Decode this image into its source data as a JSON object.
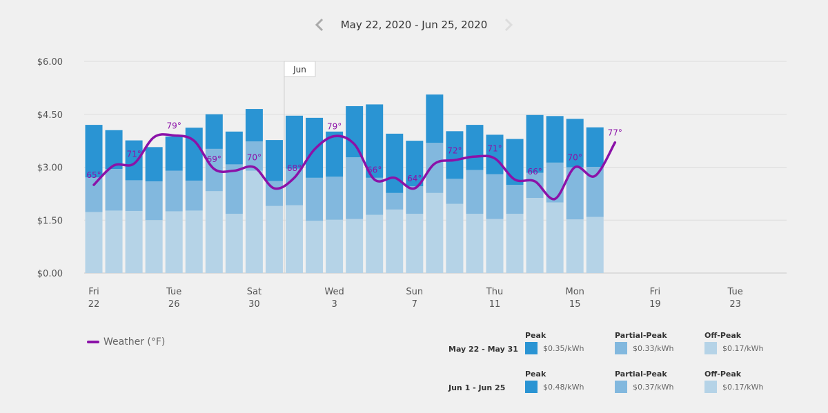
{
  "header": {
    "date_range": "May 22, 2020 - Jun 25, 2020",
    "prev_icon": "chevron-left-icon",
    "next_icon": "chevron-right-icon"
  },
  "chart_data": {
    "type": "bar",
    "stacked": true,
    "yaxis": {
      "ticks": [
        "$0.00",
        "$1.50",
        "$3.00",
        "$4.50",
        "$6.00"
      ],
      "ylim": [
        0,
        6
      ]
    },
    "x_ticks": [
      {
        "day": 0,
        "weekday": "Fri",
        "date": "22"
      },
      {
        "day": 4,
        "weekday": "Tue",
        "date": "26"
      },
      {
        "day": 8,
        "weekday": "Sat",
        "date": "30"
      },
      {
        "day": 12,
        "weekday": "Wed",
        "date": "3"
      },
      {
        "day": 16,
        "weekday": "Sun",
        "date": "7"
      },
      {
        "day": 20,
        "weekday": "Thu",
        "date": "11"
      },
      {
        "day": 24,
        "weekday": "Mon",
        "date": "15"
      },
      {
        "day": 28,
        "weekday": "Fri",
        "date": "19"
      },
      {
        "day": 32,
        "weekday": "Tue",
        "date": "23"
      }
    ],
    "month_marker": {
      "label": "Jun",
      "between_days": [
        9,
        10
      ]
    },
    "grid": true,
    "colors": {
      "peak": "#2a94d3",
      "partial_peak": "#82b8de",
      "off_peak": "#b5d3e7",
      "weather": "#8b12a8"
    },
    "series": [
      {
        "name": "Off-Peak",
        "values": [
          1.73,
          1.77,
          1.76,
          1.5,
          1.75,
          1.77,
          2.32,
          1.68,
          2.9,
          1.9,
          1.92,
          1.48,
          1.51,
          1.53,
          1.65,
          1.8,
          1.68,
          2.27,
          1.96,
          1.68,
          1.53,
          1.68,
          2.13,
          2.0,
          1.52,
          1.59
        ]
      },
      {
        "name": "Partial-Peak",
        "values": [
          0.98,
          1.18,
          0.87,
          1.1,
          1.15,
          0.85,
          1.2,
          1.4,
          0.83,
          0.71,
          1.04,
          1.22,
          1.22,
          1.75,
          1.05,
          0.47,
          0.78,
          1.42,
          0.71,
          1.24,
          1.27,
          0.82,
          0.71,
          1.13,
          1.48,
          1.42
        ]
      },
      {
        "name": "Peak",
        "values": [
          1.49,
          1.1,
          1.13,
          0.97,
          0.97,
          1.5,
          0.98,
          0.93,
          0.92,
          1.16,
          1.5,
          1.7,
          1.28,
          1.45,
          2.08,
          1.68,
          1.29,
          1.37,
          1.35,
          1.28,
          1.12,
          1.3,
          1.64,
          1.32,
          1.37,
          1.12
        ]
      }
    ],
    "weather": {
      "name": "Weather (°F)",
      "points": [
        {
          "day": 0,
          "value": 2.5,
          "label": "65°"
        },
        {
          "day": 1,
          "value": 3.05,
          "label": ""
        },
        {
          "day": 2,
          "value": 3.1,
          "label": "71°"
        },
        {
          "day": 3,
          "value": 3.85,
          "label": ""
        },
        {
          "day": 4,
          "value": 3.9,
          "label": "79°"
        },
        {
          "day": 5,
          "value": 3.75,
          "label": ""
        },
        {
          "day": 6,
          "value": 2.95,
          "label": "69°"
        },
        {
          "day": 7,
          "value": 2.9,
          "label": ""
        },
        {
          "day": 8,
          "value": 3.0,
          "label": "70°"
        },
        {
          "day": 9,
          "value": 2.4,
          "label": ""
        },
        {
          "day": 10,
          "value": 2.7,
          "label": "68°"
        },
        {
          "day": 11,
          "value": 3.5,
          "label": ""
        },
        {
          "day": 12,
          "value": 3.88,
          "label": "79°"
        },
        {
          "day": 13,
          "value": 3.65,
          "label": ""
        },
        {
          "day": 14,
          "value": 2.65,
          "label": "66°"
        },
        {
          "day": 15,
          "value": 2.7,
          "label": ""
        },
        {
          "day": 16,
          "value": 2.4,
          "label": "64°"
        },
        {
          "day": 17,
          "value": 3.1,
          "label": ""
        },
        {
          "day": 18,
          "value": 3.2,
          "label": "72°"
        },
        {
          "day": 19,
          "value": 3.3,
          "label": ""
        },
        {
          "day": 20,
          "value": 3.25,
          "label": "71°"
        },
        {
          "day": 21,
          "value": 2.65,
          "label": ""
        },
        {
          "day": 22,
          "value": 2.6,
          "label": "66°"
        },
        {
          "day": 23,
          "value": 2.1,
          "label": ""
        },
        {
          "day": 24,
          "value": 3.0,
          "label": "70°"
        },
        {
          "day": 25,
          "value": 2.75,
          "label": ""
        },
        {
          "day": 26,
          "value": 3.7,
          "label": "77°"
        }
      ]
    }
  },
  "legend": {
    "weather_label": "Weather (°F)"
  },
  "rates": [
    {
      "range": "May 22 - May 31",
      "items": [
        {
          "name": "Peak",
          "price": "$0.35/kWh"
        },
        {
          "name": "Partial-Peak",
          "price": "$0.33/kWh"
        },
        {
          "name": "Off-Peak",
          "price": "$0.17/kWh"
        }
      ]
    },
    {
      "range": "Jun 1 - Jun 25",
      "items": [
        {
          "name": "Peak",
          "price": "$0.48/kWh"
        },
        {
          "name": "Partial-Peak",
          "price": "$0.37/kWh"
        },
        {
          "name": "Off-Peak",
          "price": "$0.17/kWh"
        }
      ]
    }
  ]
}
